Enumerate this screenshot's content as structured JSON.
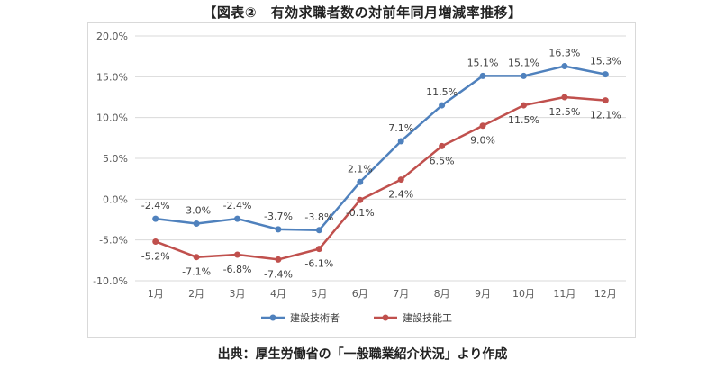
{
  "title": "【図表②　有効求職者数の対前年同月増減率推移】",
  "source_note": "出典：厚生労働省の「一般職業紹介状況」より作成",
  "chart_data": {
    "type": "line",
    "title": "",
    "xlabel": "",
    "ylabel": "",
    "categories": [
      "1月",
      "2月",
      "3月",
      "4月",
      "5月",
      "6月",
      "7月",
      "8月",
      "9月",
      "10月",
      "11月",
      "12月"
    ],
    "ylim": [
      -10,
      20
    ],
    "yticks": [
      -10,
      -5,
      0,
      5,
      10,
      15,
      20
    ],
    "ytick_labels": [
      "-10.0%",
      "-5.0%",
      "0.0%",
      "5.0%",
      "10.0%",
      "15.0%",
      "20.0%"
    ],
    "grid": true,
    "legend_position": "bottom",
    "series": [
      {
        "name": "建設技術者",
        "color": "#4f81bd",
        "values": [
          -2.4,
          -3.0,
          -2.4,
          -3.7,
          -3.8,
          2.1,
          7.1,
          11.5,
          15.1,
          15.1,
          16.3,
          15.3
        ],
        "labels": [
          "-2.4%",
          "-3.0%",
          "-2.4%",
          "-3.7%",
          "-3.8%",
          "2.1%",
          "7.1%",
          "11.5%",
          "15.1%",
          "15.1%",
          "16.3%",
          "15.3%"
        ]
      },
      {
        "name": "建設技能工",
        "color": "#c0504d",
        "values": [
          -5.2,
          -7.1,
          -6.8,
          -7.4,
          -6.1,
          -0.1,
          2.4,
          6.5,
          9.0,
          11.5,
          12.5,
          12.1
        ],
        "labels": [
          "-5.2%",
          "-7.1%",
          "-6.8%",
          "-7.4%",
          "-6.1%",
          "-0.1%",
          "2.4%",
          "6.5%",
          "9.0%",
          "11.5%",
          "12.5%",
          "12.1%"
        ]
      }
    ]
  }
}
